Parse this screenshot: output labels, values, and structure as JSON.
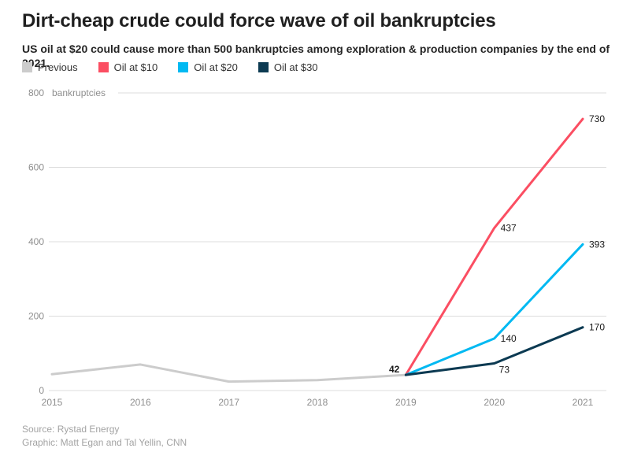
{
  "header": {
    "title": "Dirt-cheap crude could force wave of oil bankruptcies",
    "subtitle": "US oil at $20 could cause more than 500 bankruptcies among exploration & production companies by the end of 2021."
  },
  "footer": {
    "source": "Source: Rystad Energy",
    "credit": "Graphic: Matt Egan and Tal Yellin, CNN"
  },
  "theme": {
    "background": "#ffffff",
    "title_color": "#1f1f1f",
    "grid_color": "#dcdcdc",
    "axis_text_color": "#8e8e8e",
    "data_label_color": "#1a1a1a",
    "footer_color": "#a3a3a3"
  },
  "chart_data": {
    "type": "line",
    "title": "Dirt-cheap crude could force wave of oil bankruptcies",
    "xlabel": "",
    "ylabel": "bankruptcies",
    "x": [
      2015,
      2016,
      2017,
      2018,
      2019,
      2020,
      2021
    ],
    "ylim": [
      0,
      800
    ],
    "yticks": [
      0,
      200,
      400,
      600,
      800
    ],
    "grid": true,
    "legend_position": "top",
    "series": [
      {
        "name": "Previous",
        "color": "#cccccc",
        "x": [
          2015,
          2016,
          2017,
          2018,
          2019
        ],
        "values": [
          44,
          70,
          24,
          28,
          42
        ]
      },
      {
        "name": "Oil at $10",
        "color": "#fb4e62",
        "x": [
          2019,
          2020,
          2021
        ],
        "values": [
          42,
          437,
          730
        ]
      },
      {
        "name": "Oil at $20",
        "color": "#00b9f2",
        "x": [
          2019,
          2020,
          2021
        ],
        "values": [
          42,
          140,
          393
        ]
      },
      {
        "name": "Oil at $30",
        "color": "#0c3a52",
        "x": [
          2019,
          2020,
          2021
        ],
        "values": [
          42,
          73,
          170
        ]
      }
    ],
    "point_labels": [
      {
        "text": "42",
        "x": 2019,
        "value": 42,
        "placement": "left",
        "bold": true
      },
      {
        "text": "437",
        "x": 2020,
        "value": 437,
        "placement": "right",
        "bold": false
      },
      {
        "text": "730",
        "x": 2021,
        "value": 730,
        "placement": "end",
        "bold": false
      },
      {
        "text": "140",
        "x": 2020,
        "value": 140,
        "placement": "right",
        "bold": false
      },
      {
        "text": "393",
        "x": 2021,
        "value": 393,
        "placement": "end",
        "bold": false
      },
      {
        "text": "73",
        "x": 2020,
        "value": 73,
        "placement": "below",
        "bold": false
      },
      {
        "text": "170",
        "x": 2021,
        "value": 170,
        "placement": "end",
        "bold": false
      }
    ]
  }
}
